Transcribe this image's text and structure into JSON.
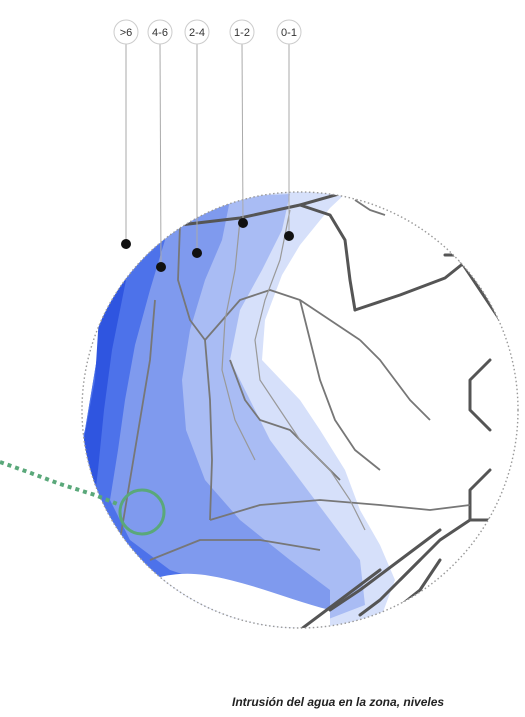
{
  "legend": {
    "levels": [
      {
        "label": ">6",
        "color": "#2f55e0"
      },
      {
        "label": "4-6",
        "color": "#4d72ea"
      },
      {
        "label": "2-4",
        "color": "#7f9aee"
      },
      {
        "label": "1-2",
        "color": "#a9bcf4"
      },
      {
        "label": "0-1",
        "color": "#d6e0fa"
      }
    ]
  },
  "caption": "Intrusión del agua en la zona, niveles",
  "colors": {
    "road": "#555555",
    "highlight": "#5aa87a",
    "boundary": "#999999"
  }
}
